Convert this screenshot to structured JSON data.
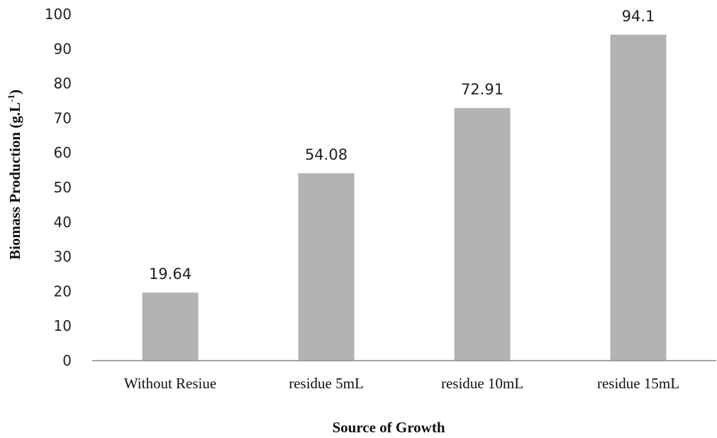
{
  "chart_data": {
    "type": "bar",
    "title": "",
    "xlabel": "Source of Growth",
    "ylabel": {
      "main": "Biomass Production (g.L",
      "sup": "-1",
      "close": ")"
    },
    "categories": [
      "Without Resiue",
      "residue 5mL",
      "residue 10mL",
      "residue 15mL"
    ],
    "values": [
      19.64,
      54.08,
      72.91,
      94.1
    ],
    "data_labels": [
      "19.64",
      "54.08",
      "72.91",
      "94.1"
    ],
    "ylim": [
      0,
      100
    ],
    "yticks": [
      0,
      10,
      20,
      30,
      40,
      50,
      60,
      70,
      80,
      90,
      100
    ],
    "grid": false,
    "legend": "none",
    "colors": {
      "bar": "#b3b3b3",
      "axis": "#888888"
    }
  }
}
